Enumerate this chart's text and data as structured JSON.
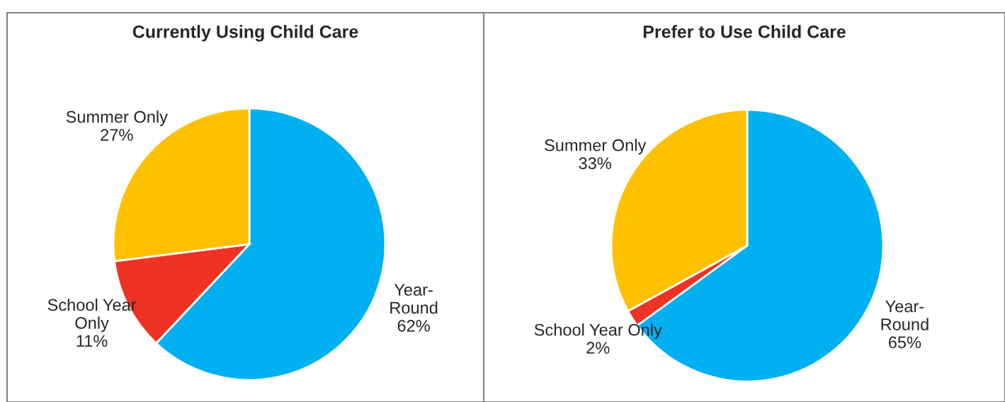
{
  "chart_data": [
    {
      "type": "pie",
      "title": "Currently Using Child Care",
      "categories": [
        "Year-\nRound",
        "School Year\nOnly",
        "Summer Only"
      ],
      "values": [
        62,
        11,
        27
      ],
      "value_labels": [
        "62%",
        "11%",
        "27%"
      ],
      "colors": [
        "#00b0f0",
        "#ee3224",
        "#ffc000"
      ]
    },
    {
      "type": "pie",
      "title": "Prefer to Use Child Care",
      "categories": [
        "Year-\nRound",
        "School Year Only",
        "Summer Only"
      ],
      "values": [
        65,
        2,
        33
      ],
      "value_labels": [
        "65%",
        "2%",
        "33%"
      ],
      "colors": [
        "#00b0f0",
        "#ee3224",
        "#ffc000"
      ]
    }
  ]
}
